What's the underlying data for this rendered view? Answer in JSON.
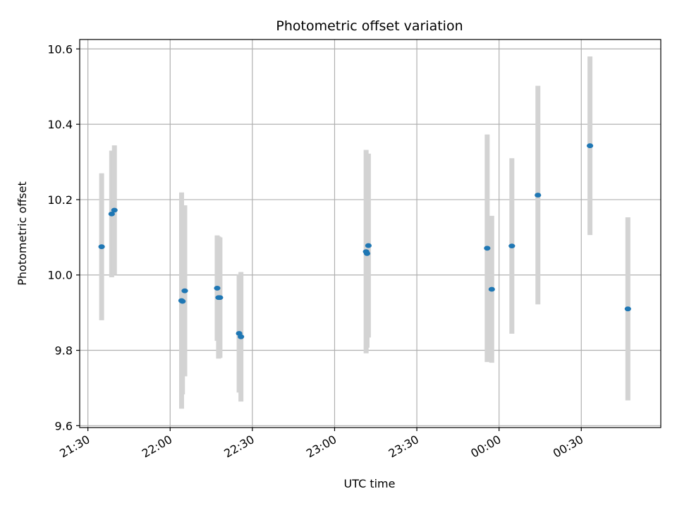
{
  "chart_data": {
    "type": "scatter",
    "title": "Photometric offset variation",
    "xlabel": "UTC time",
    "ylabel": "Photometric offset",
    "xlim": [
      "21:27",
      "00:59"
    ],
    "ylim": [
      9.595,
      10.625
    ],
    "grid": true,
    "x_ticks": [
      "21:30",
      "22:00",
      "22:30",
      "23:00",
      "23:30",
      "00:00",
      "00:30"
    ],
    "y_ticks": [
      "9.6",
      "9.8",
      "10.0",
      "10.2",
      "10.4",
      "10.6"
    ],
    "colors": {
      "point": "#1f77b4",
      "errorbar": "#d3d3d3",
      "grid": "#b0b0b0"
    },
    "points": [
      {
        "t": "21:35:00",
        "y": 10.075,
        "err": 0.195
      },
      {
        "t": "21:38:40",
        "y": 10.162,
        "err": 0.168
      },
      {
        "t": "21:39:40",
        "y": 10.172,
        "err": 0.172
      },
      {
        "t": "22:04:10",
        "y": 9.932,
        "err": 0.287
      },
      {
        "t": "22:04:30",
        "y": 9.93,
        "err": 0.247
      },
      {
        "t": "22:05:20",
        "y": 9.958,
        "err": 0.227
      },
      {
        "t": "22:17:10",
        "y": 9.965,
        "err": 0.14
      },
      {
        "t": "22:17:40",
        "y": 9.94,
        "err": 0.162
      },
      {
        "t": "22:18:10",
        "y": 9.94,
        "err": 0.16
      },
      {
        "t": "22:25:10",
        "y": 9.845,
        "err": 0.157
      },
      {
        "t": "22:25:50",
        "y": 9.836,
        "err": 0.172
      },
      {
        "t": "23:11:30",
        "y": 10.062,
        "err": 0.27
      },
      {
        "t": "23:11:50",
        "y": 10.057,
        "err": 0.25
      },
      {
        "t": "23:12:20",
        "y": 10.078,
        "err": 0.244
      },
      {
        "t": "23:55:40",
        "y": 10.071,
        "err": 0.302
      },
      {
        "t": "23:57:20",
        "y": 9.962,
        "err": 0.195
      },
      {
        "t": "00:04:40",
        "y": 10.077,
        "err": 0.233
      },
      {
        "t": "00:14:10",
        "y": 10.212,
        "err": 0.29
      },
      {
        "t": "00:33:10",
        "y": 10.343,
        "err": 0.237
      },
      {
        "t": "00:47:00",
        "y": 9.91,
        "err": 0.243
      }
    ]
  }
}
